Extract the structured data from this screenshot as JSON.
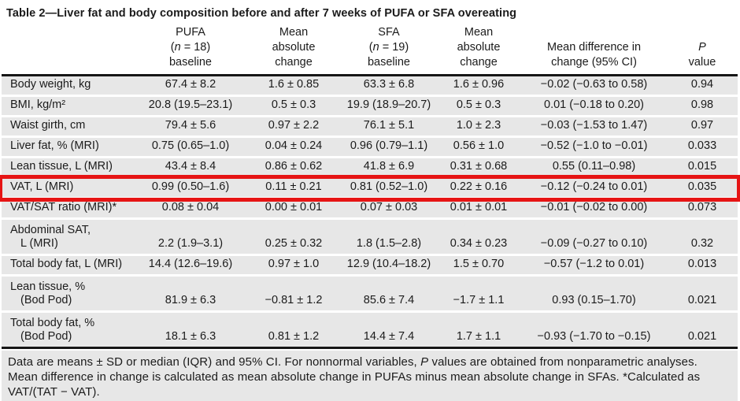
{
  "colors": {
    "highlight_red": "#e61414",
    "row_gray": "#e7e7e7",
    "rule_black": "#161616"
  },
  "title": "Table 2—Liver fat and body composition before and after 7 weeks of PUFA or SFA overeating",
  "table": {
    "columns": [
      {
        "id": "measure",
        "header_lines": [
          ""
        ]
      },
      {
        "id": "pufa-baseline",
        "header_lines": [
          "PUFA",
          "(<i>n</i> = 18)",
          "baseline"
        ]
      },
      {
        "id": "pufa-mean-change",
        "header_lines": [
          "Mean",
          "absolute",
          "change"
        ]
      },
      {
        "id": "sfa-baseline",
        "header_lines": [
          "SFA",
          "(<i>n</i> = 19)",
          "baseline"
        ]
      },
      {
        "id": "sfa-mean-change",
        "header_lines": [
          "Mean",
          "absolute",
          "change"
        ]
      },
      {
        "id": "mean-difference",
        "header_lines": [
          "Mean difference in",
          "change (95% CI)"
        ]
      },
      {
        "id": "p-value",
        "header_lines": [
          "<i>P</i>",
          "value"
        ]
      }
    ],
    "rows": [
      {
        "label_lines": [
          "Body weight, kg"
        ],
        "values": [
          "67.4 ± 8.2",
          "1.6 ± 0.85",
          "63.3 ± 6.8",
          "1.6 ± 0.96",
          "−0.02 (−0.63 to 0.58)",
          "0.94"
        ],
        "highlighted": false
      },
      {
        "label_lines": [
          "BMI, kg/m²"
        ],
        "values": [
          "20.8 (19.5–23.1)",
          "0.5 ± 0.3",
          "19.9 (18.9–20.7)",
          "0.5 ± 0.3",
          "0.01 (−0.18 to 0.20)",
          "0.98"
        ],
        "highlighted": false
      },
      {
        "label_lines": [
          "Waist girth, cm"
        ],
        "values": [
          "79.4 ± 5.6",
          "0.97 ± 2.2",
          "76.1 ± 5.1",
          "1.0 ± 2.3",
          "−0.03 (−1.53 to 1.47)",
          "0.97"
        ],
        "highlighted": false
      },
      {
        "label_lines": [
          "Liver fat, % (MRI)"
        ],
        "values": [
          "0.75 (0.65–1.0)",
          "0.04 ± 0.24",
          "0.96 (0.79–1.1)",
          "0.56 ± 1.0",
          "−0.52 (−1.0 to −0.01)",
          "0.033"
        ],
        "highlighted": false
      },
      {
        "label_lines": [
          "Lean tissue, L (MRI)"
        ],
        "values": [
          "43.4 ± 8.4",
          "0.86 ± 0.62",
          "41.8 ± 6.9",
          "0.31 ± 0.68",
          "0.55 (0.11–0.98)",
          "0.015"
        ],
        "highlighted": false
      },
      {
        "label_lines": [
          "VAT, L (MRI)"
        ],
        "values": [
          "0.99 (0.50–1.6)",
          "0.11 ± 0.21",
          "0.81 (0.52–1.0)",
          "0.22 ± 0.16",
          "−0.12 (−0.24 to 0.01)",
          "0.035"
        ],
        "highlighted": true
      },
      {
        "label_lines": [
          "VAT/SAT ratio (MRI)*"
        ],
        "values": [
          "0.08 ± 0.04",
          "0.00 ± 0.01",
          "0.07 ± 0.03",
          "0.01 ± 0.01",
          "−0.01 (−0.02 to 0.00)",
          "0.073"
        ],
        "highlighted": false
      },
      {
        "label_lines": [
          "Abdominal SAT,",
          "L (MRI)"
        ],
        "values": [
          "2.2 (1.9–3.1)",
          "0.25 ± 0.32",
          "1.8 (1.5–2.8)",
          "0.34 ± 0.23",
          "−0.09 (−0.27 to 0.10)",
          "0.32"
        ],
        "highlighted": false
      },
      {
        "label_lines": [
          "Total body fat, L (MRI)"
        ],
        "values": [
          "14.4 (12.6–19.6)",
          "0.97 ± 1.0",
          "12.9 (10.4–18.2)",
          "1.5 ± 0.70",
          "−0.57 (−1.2 to 0.01)",
          "0.013"
        ],
        "highlighted": false
      },
      {
        "label_lines": [
          "Lean tissue, %",
          "(Bod Pod)"
        ],
        "values": [
          "81.9 ± 6.3",
          "−0.81 ± 1.2",
          "85.6 ± 7.4",
          "−1.7 ± 1.1",
          "0.93 (0.15–1.70)",
          "0.021"
        ],
        "highlighted": false
      },
      {
        "label_lines": [
          "Total body fat, %",
          "(Bod Pod)"
        ],
        "values": [
          "18.1 ± 6.3",
          "0.81 ± 1.2",
          "14.4 ± 7.4",
          "1.7 ± 1.1",
          "−0.93 (−1.70 to −0.15)",
          "0.021"
        ],
        "highlighted": false
      }
    ]
  },
  "footnote_lines": [
    "Data are means ± SD or median (IQR) and 95% CI. For nonnormal variables, <i>P</i> values are obtained from nonparametric analyses.",
    "Mean difference in change is calculated as mean absolute change in PUFAs minus mean absolute change in SFAs. *Calculated as",
    "VAT/(TAT − VAT)."
  ]
}
